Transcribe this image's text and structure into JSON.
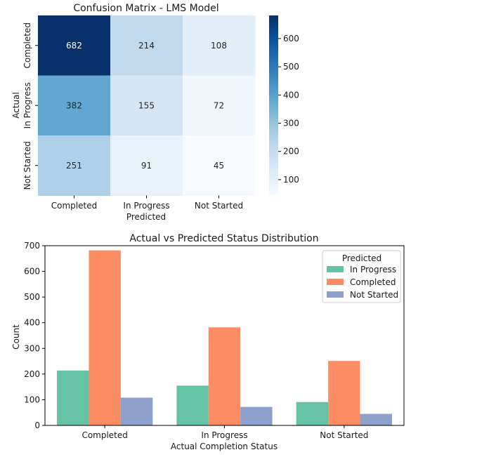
{
  "chart_data": [
    {
      "type": "heatmap",
      "title": "Confusion Matrix - LMS Model",
      "xlabel": "Predicted",
      "ylabel": "Actual",
      "x_categories": [
        "Completed",
        "In Progress",
        "Not Started"
      ],
      "y_categories": [
        "Completed",
        "In Progress",
        "Not Started"
      ],
      "values": [
        [
          682,
          214,
          108
        ],
        [
          382,
          155,
          72
        ],
        [
          251,
          91,
          45
        ]
      ],
      "colormap": "Blues",
      "value_range": [
        45,
        682
      ],
      "colorbar_ticks": [
        100,
        200,
        300,
        400,
        500,
        600
      ]
    },
    {
      "type": "bar",
      "title": "Actual vs Predicted Status Distribution",
      "xlabel": "Actual Completion Status",
      "ylabel": "Count",
      "categories": [
        "Completed",
        "In Progress",
        "Not Started"
      ],
      "series": [
        {
          "name": "In Progress",
          "values": [
            214,
            155,
            91
          ],
          "color": "#66c2a5"
        },
        {
          "name": "Completed",
          "values": [
            682,
            382,
            251
          ],
          "color": "#fc8d62"
        },
        {
          "name": "Not Started",
          "values": [
            108,
            72,
            45
          ],
          "color": "#8da0cb"
        }
      ],
      "ylim": [
        0,
        700
      ],
      "yticks": [
        0,
        100,
        200,
        300,
        400,
        500,
        600,
        700
      ],
      "legend_title": "Predicted",
      "legend_position": "top-right",
      "grid": false
    }
  ]
}
